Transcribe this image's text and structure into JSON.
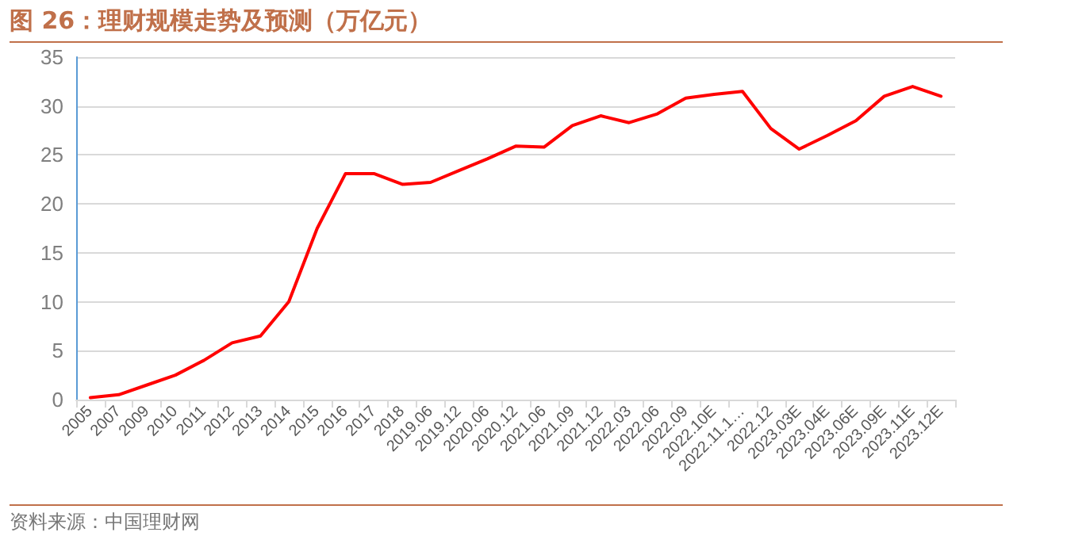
{
  "chart_data": {
    "type": "line",
    "title": "图 26：理财规模走势及预测（万亿元）",
    "categories": [
      "2005",
      "2007",
      "2009",
      "2010",
      "2011",
      "2012",
      "2013",
      "2014",
      "2015",
      "2016",
      "2017",
      "2018",
      "2019.06",
      "2019.12",
      "2020.06",
      "2020.12",
      "2021.06",
      "2021.09",
      "2021.12",
      "2022.03",
      "2022.06",
      "2022.09",
      "2022.10E",
      "2022.11.1…",
      "2022.12",
      "2023.03E",
      "2023.04E",
      "2023.06E",
      "2023.09E",
      "2023.11E",
      "2023.12E"
    ],
    "series": [
      {
        "color": "#ff0000",
        "values": [
          0.2,
          0.5,
          1.5,
          2.5,
          4,
          5.8,
          6.5,
          10,
          17.5,
          23.1,
          23.1,
          22,
          22.2,
          23.4,
          24.6,
          25.9,
          25.8,
          28,
          29,
          28.3,
          29.2,
          30.8,
          31.2,
          31.5,
          27.7,
          25.6,
          27,
          28.5,
          31,
          32,
          31
        ]
      }
    ],
    "ylim": [
      0,
      35
    ],
    "yticks": [
      0,
      5,
      10,
      15,
      20,
      25,
      30,
      35
    ],
    "grid": "y",
    "marker": "none",
    "line_style": "solid",
    "annotations": [
      "资料来源：中国理财网"
    ]
  }
}
